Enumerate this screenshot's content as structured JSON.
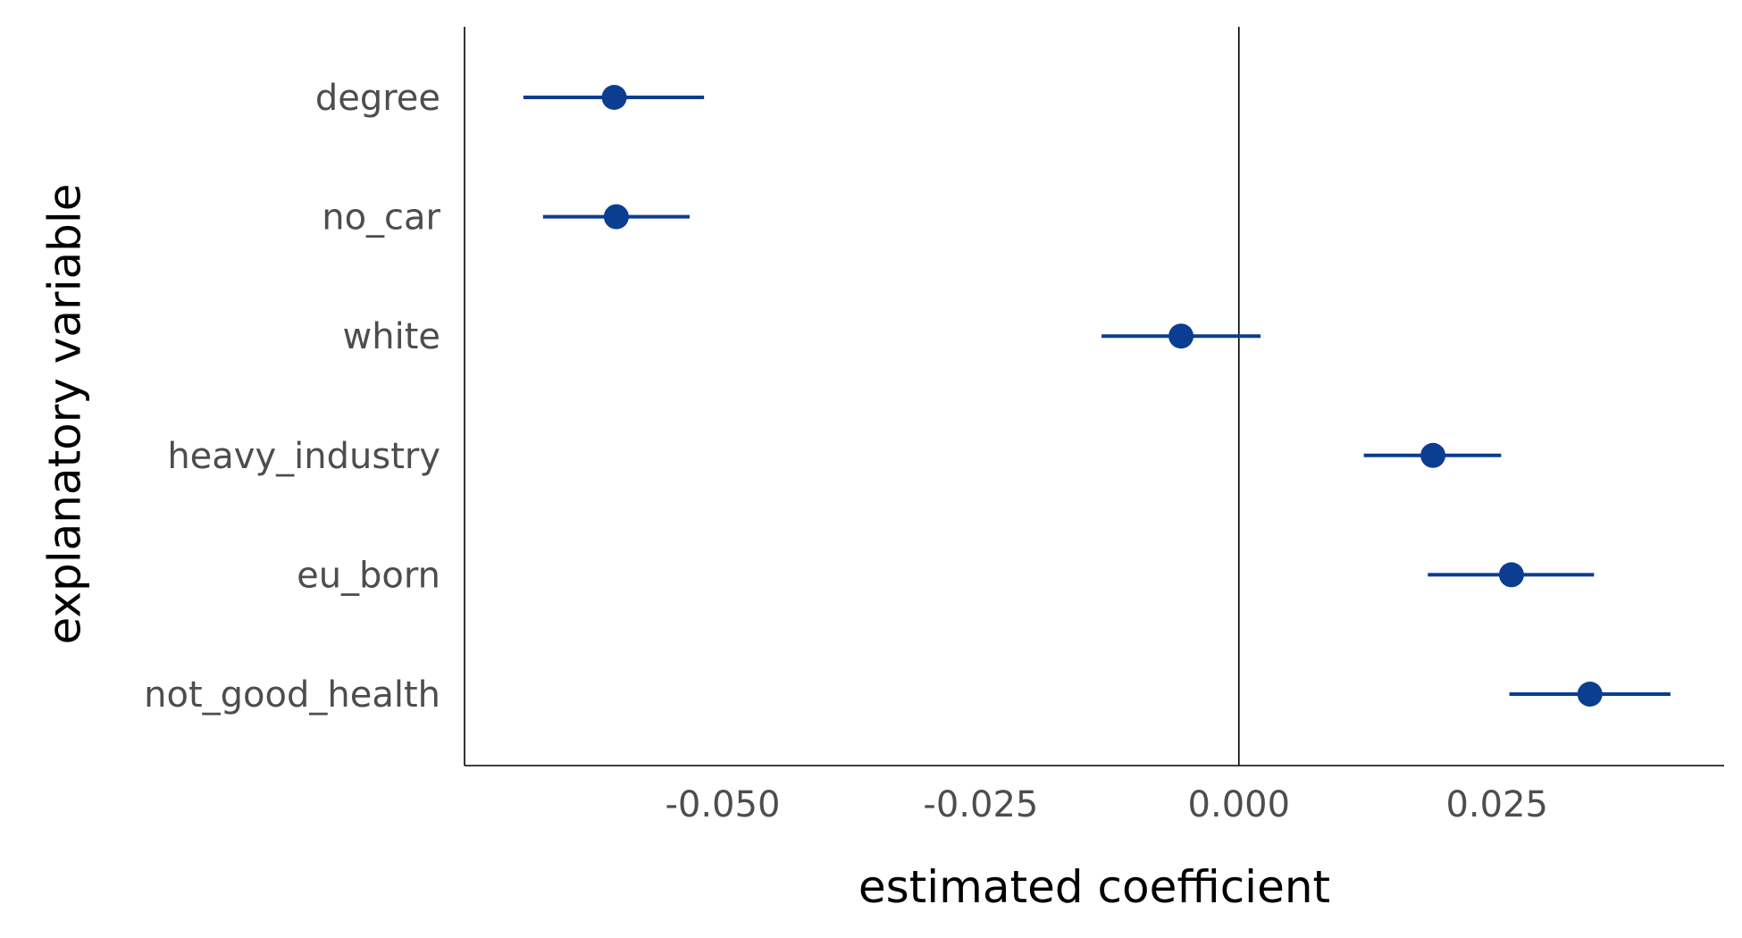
{
  "chart_data": {
    "type": "scatter",
    "title": "",
    "xlabel": "estimated coefficient",
    "ylabel": "explanatory variable",
    "xlim": [
      -0.075,
      0.047
    ],
    "x_ticks": [
      {
        "value": -0.05,
        "label": "-0.050"
      },
      {
        "value": -0.025,
        "label": "-0.025"
      },
      {
        "value": 0.0,
        "label": "0.000"
      },
      {
        "value": 0.025,
        "label": "0.025"
      }
    ],
    "reference_line_x": 0.0,
    "grid": false,
    "legend": "none",
    "color": "#0b3d91",
    "categories": [
      "degree",
      "no_car",
      "white",
      "heavy_industry",
      "eu_born",
      "not_good_health"
    ],
    "estimates": [
      -0.0605,
      -0.0603,
      -0.0056,
      0.0188,
      0.0264,
      0.034
    ],
    "ci_low": [
      -0.0693,
      -0.0674,
      -0.0133,
      0.0121,
      0.0183,
      0.0262
    ],
    "ci_high": [
      -0.0518,
      -0.0532,
      0.0021,
      0.0254,
      0.0344,
      0.0418
    ]
  }
}
